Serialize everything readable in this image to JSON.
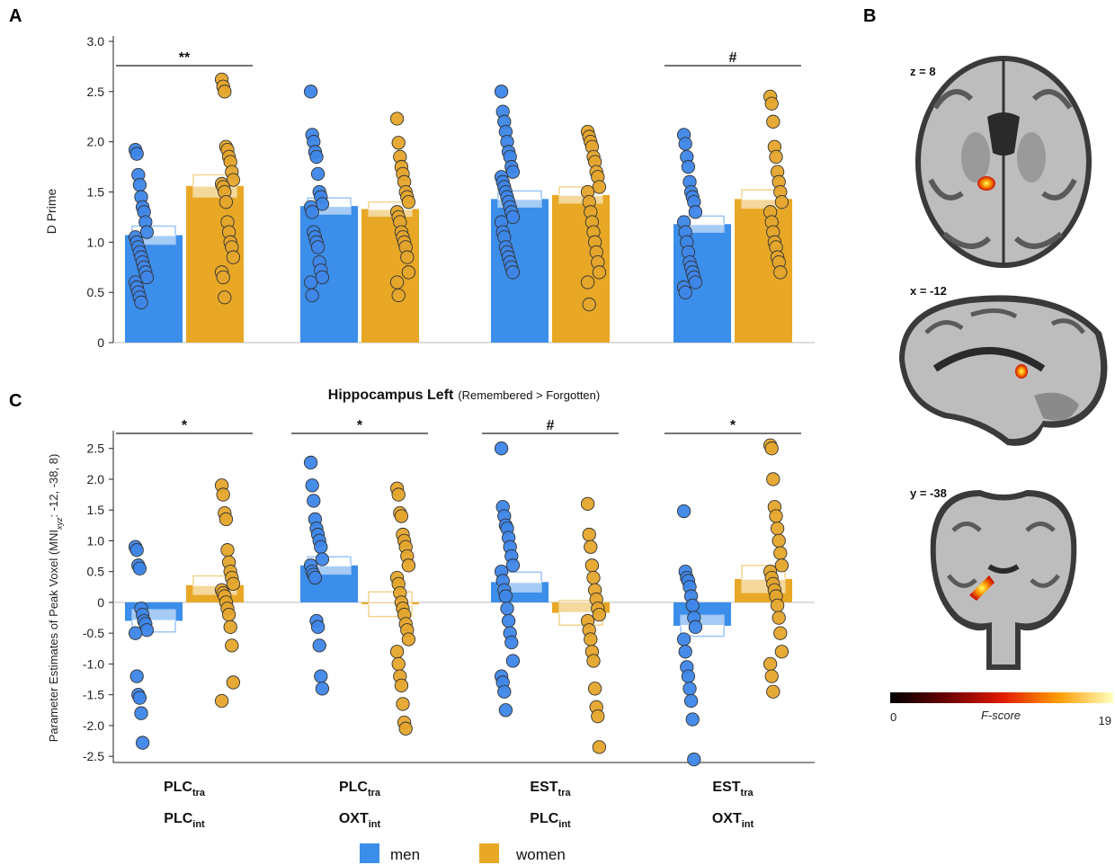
{
  "colors": {
    "men": "#3B8EEA",
    "women": "#E8A825",
    "men_dot": "#3E86E8",
    "women_dot": "#E5A52C"
  },
  "panels": {
    "a": "A",
    "b": "B",
    "c": "C"
  },
  "legend": {
    "men": "men",
    "women": "women"
  },
  "groups": [
    {
      "main1": "PLC",
      "sub1": "tra",
      "main2": "PLC",
      "sub2": "int"
    },
    {
      "main1": "PLC",
      "sub1": "tra",
      "main2": "OXT",
      "sub2": "int"
    },
    {
      "main1": "EST",
      "sub1": "tra",
      "main2": "PLC",
      "sub2": "int"
    },
    {
      "main1": "EST",
      "sub1": "tra",
      "main2": "OXT",
      "sub2": "int"
    }
  ],
  "brain": {
    "slices": [
      {
        "label": "z = 8",
        "view": "axial"
      },
      {
        "label": "x = -12",
        "view": "sagittal"
      },
      {
        "label": "y = -38",
        "view": "coronal"
      }
    ],
    "colorbar": {
      "min": "0",
      "max": "19",
      "label": "F-score"
    }
  },
  "chart_data": [
    {
      "type": "bar",
      "panel": "A",
      "ylabel": "D Prime",
      "ylim": [
        0,
        3.0
      ],
      "yticks": [
        "0",
        "0.5",
        "1.0",
        "1.5",
        "2.0",
        "2.5",
        "3.0"
      ],
      "yticks_values": [
        0,
        0.5,
        1.0,
        1.5,
        2.0,
        2.5,
        3.0
      ],
      "categories": [
        "PLC tra / PLC int",
        "PLC tra / OXT int",
        "EST tra / PLC int",
        "EST tra / OXT int"
      ],
      "series": [
        {
          "name": "men",
          "values": [
            1.07,
            1.36,
            1.43,
            1.18
          ],
          "se": [
            0.09,
            0.08,
            0.08,
            0.08
          ],
          "points": [
            [
              1.92,
              1.88,
              1.67,
              1.57,
              1.45,
              1.35,
              1.3,
              1.2,
              1.1,
              1.05,
              1.0,
              0.95,
              0.9,
              0.85,
              0.8,
              0.75,
              0.7,
              0.65,
              0.6,
              0.55,
              0.5,
              0.45,
              0.4
            ],
            [
              2.5,
              2.07,
              2.0,
              1.9,
              1.85,
              1.68,
              1.5,
              1.45,
              1.38,
              1.35,
              1.3,
              1.1,
              1.05,
              1.0,
              0.95,
              0.8,
              0.72,
              0.65,
              0.6,
              0.47
            ],
            [
              2.5,
              2.3,
              2.2,
              2.1,
              2.0,
              1.9,
              1.85,
              1.75,
              1.7,
              1.65,
              1.6,
              1.55,
              1.5,
              1.45,
              1.4,
              1.35,
              1.3,
              1.25,
              1.2,
              1.1,
              1.05,
              0.95,
              0.9,
              0.85,
              0.8,
              0.75,
              0.7
            ],
            [
              2.07,
              1.98,
              1.85,
              1.75,
              1.6,
              1.5,
              1.45,
              1.4,
              1.3,
              1.2,
              1.1,
              1.0,
              0.9,
              0.8,
              0.75,
              0.7,
              0.65,
              0.6,
              0.55,
              0.5
            ]
          ]
        },
        {
          "name": "women",
          "values": [
            1.56,
            1.33,
            1.47,
            1.43
          ],
          "se": [
            0.11,
            0.07,
            0.08,
            0.09
          ],
          "points": [
            [
              2.62,
              2.55,
              2.5,
              1.95,
              1.92,
              1.85,
              1.8,
              1.7,
              1.62,
              1.58,
              1.55,
              1.5,
              1.4,
              1.2,
              1.1,
              1.0,
              0.95,
              0.85,
              0.7,
              0.65,
              0.45
            ],
            [
              2.23,
              1.99,
              1.85,
              1.75,
              1.68,
              1.6,
              1.5,
              1.45,
              1.4,
              1.3,
              1.25,
              1.2,
              1.1,
              1.05,
              1.0,
              0.95,
              0.85,
              0.7,
              0.6,
              0.47
            ],
            [
              2.1,
              2.05,
              2.0,
              1.95,
              1.85,
              1.8,
              1.7,
              1.65,
              1.55,
              1.5,
              1.4,
              1.3,
              1.2,
              1.1,
              1.0,
              0.9,
              0.8,
              0.7,
              0.6,
              0.38
            ],
            [
              2.45,
              2.38,
              2.2,
              1.95,
              1.85,
              1.7,
              1.6,
              1.5,
              1.4,
              1.3,
              1.2,
              1.1,
              1.0,
              0.95,
              0.85,
              0.8,
              0.7
            ]
          ]
        }
      ],
      "significance": [
        "**",
        "",
        "",
        "#"
      ]
    },
    {
      "type": "bar",
      "panel": "C",
      "title": "Hippocampus Left",
      "subtitle": "(Remembered > Forgotten)",
      "ylabel_prefix": "Parameter Estimates of Peak Voxel (MNI",
      "ylabel_sub": "xyz",
      "ylabel_suffix": ": -12, -38, 8)",
      "ylim": [
        -2.6,
        2.7
      ],
      "yticks": [
        "2.5",
        "2.0",
        "1.5",
        "1.0",
        "0.5",
        "0",
        "-0.5",
        "-1.0",
        "-1.5",
        "-2.0",
        "-2.5"
      ],
      "yticks_values": [
        2.5,
        2.0,
        1.5,
        1.0,
        0.5,
        0,
        -0.5,
        -1.0,
        -1.5,
        -2.0,
        -2.5
      ],
      "categories": [
        "PLC tra / PLC int",
        "PLC tra / OXT int",
        "EST tra / PLC int",
        "EST tra / OXT int"
      ],
      "series": [
        {
          "name": "men",
          "values": [
            -0.3,
            0.6,
            0.33,
            -0.38
          ],
          "se": [
            0.18,
            0.14,
            0.16,
            0.17
          ],
          "points": [
            [
              0.9,
              0.85,
              0.6,
              0.55,
              -0.1,
              -0.2,
              -0.3,
              -0.35,
              -0.45,
              -0.5,
              -1.2,
              -1.5,
              -1.55,
              -1.8,
              -2.28
            ],
            [
              2.27,
              1.9,
              1.65,
              1.35,
              1.2,
              1.1,
              1.0,
              0.9,
              0.7,
              0.6,
              0.5,
              0.45,
              0.4,
              -0.3,
              -0.4,
              -0.7,
              -1.2,
              -1.4
            ],
            [
              2.5,
              1.55,
              1.4,
              1.25,
              1.2,
              1.05,
              0.9,
              0.75,
              0.6,
              0.5,
              0.35,
              0.2,
              0.1,
              -0.1,
              -0.3,
              -0.5,
              -0.65,
              -0.95,
              -1.2,
              -1.3,
              -1.45,
              -1.75
            ],
            [
              1.48,
              0.5,
              0.4,
              0.35,
              0.25,
              0.1,
              -0.05,
              -0.25,
              -0.4,
              -0.6,
              -0.8,
              -1.05,
              -1.2,
              -1.4,
              -1.6,
              -1.9,
              -2.55
            ]
          ]
        },
        {
          "name": "women",
          "values": [
            0.28,
            -0.03,
            -0.17,
            0.38
          ],
          "se": [
            0.15,
            0.2,
            0.2,
            0.22
          ],
          "points": [
            [
              1.9,
              1.75,
              1.45,
              1.35,
              0.85,
              0.65,
              0.5,
              0.4,
              0.3,
              0.2,
              0.15,
              0.1,
              0.0,
              -0.1,
              -0.2,
              -0.4,
              -0.7,
              -1.3,
              -1.6
            ],
            [
              1.85,
              1.75,
              1.45,
              1.4,
              1.1,
              1.0,
              0.9,
              0.75,
              0.6,
              0.4,
              0.3,
              0.15,
              0.0,
              -0.1,
              -0.2,
              -0.35,
              -0.45,
              -0.6,
              -0.8,
              -1.0,
              -1.2,
              -1.35,
              -1.65,
              -1.95,
              -2.05
            ],
            [
              1.6,
              1.1,
              0.9,
              0.6,
              0.4,
              0.2,
              0.05,
              -0.1,
              -0.2,
              -0.3,
              -0.45,
              -0.6,
              -0.8,
              -0.95,
              -1.4,
              -1.7,
              -1.85,
              -2.35
            ],
            [
              2.55,
              2.5,
              2.0,
              1.55,
              1.4,
              1.2,
              1.0,
              0.8,
              0.6,
              0.5,
              0.4,
              0.3,
              0.2,
              0.1,
              -0.05,
              -0.25,
              -0.5,
              -0.8,
              -1.0,
              -1.2,
              -1.45
            ]
          ]
        }
      ],
      "significance": [
        "*",
        "*",
        "#",
        "*"
      ]
    }
  ]
}
